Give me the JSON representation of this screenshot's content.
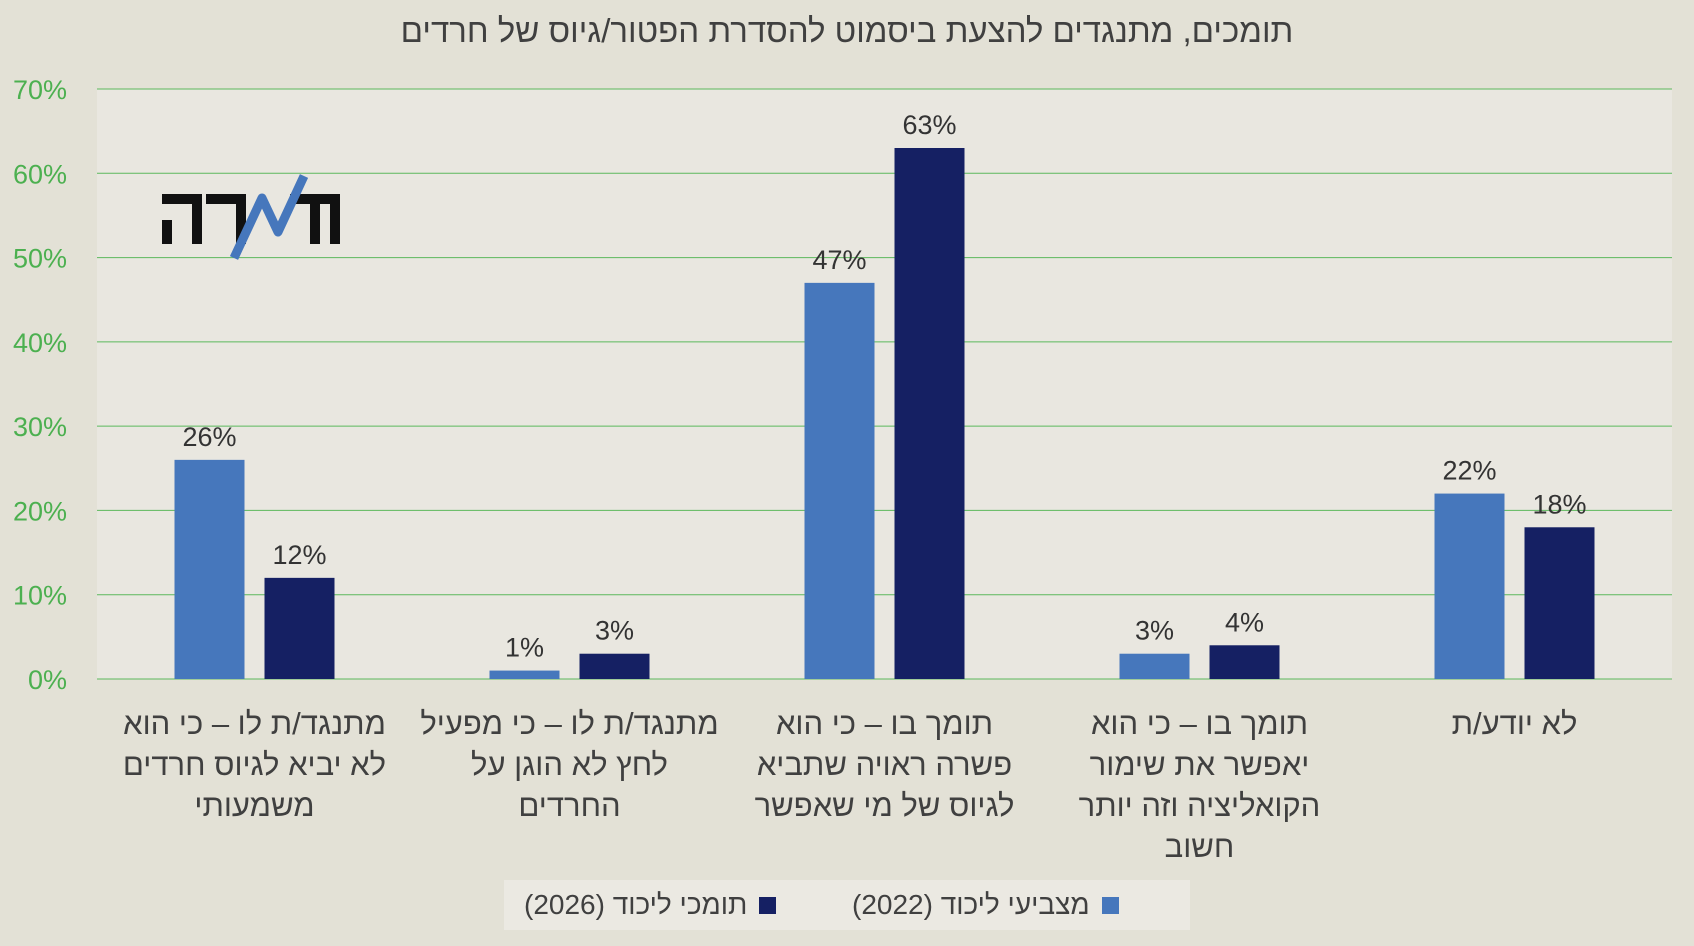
{
  "chart_data": {
    "type": "bar",
    "title": "תומכים, מתנגדים להצעת ביסמוט להסדרת הפטור/גיוס של חרדים",
    "xlabel": "",
    "ylabel": "",
    "ylim": [
      0,
      70
    ],
    "y_ticks": [
      "0%",
      "10%",
      "20%",
      "30%",
      "40%",
      "50%",
      "60%",
      "70%"
    ],
    "grid": true,
    "legend_position": "bottom",
    "categories": [
      [
        "מתנגד/ת לו – כי הוא",
        "לא יביא לגיוס חרדים",
        "משמעותי"
      ],
      [
        "מתנגד/ת לו – כי מפעיל",
        "לחץ לא הוגן על",
        "החרדים"
      ],
      [
        "תומך בו – כי הוא",
        "פשרה ראויה שתביא",
        "לגיוס של מי שאפשר"
      ],
      [
        "תומך בו – כי הוא",
        "יאפשר את שימור",
        "הקואליציה וזה יותר",
        "חשוב"
      ],
      [
        "לא יודע/ת"
      ]
    ],
    "series": [
      {
        "name": "מצביעי ליכוד (2022)",
        "color": "#4677bc",
        "values": [
          26,
          1,
          47,
          3,
          22
        ],
        "labels": [
          "26%",
          "1%",
          "47%",
          "3%",
          "22%"
        ]
      },
      {
        "name": "תומכי ליכוד (2026)",
        "color": "#152063",
        "values": [
          12,
          3,
          63,
          4,
          18
        ],
        "labels": [
          "12%",
          "3%",
          "63%",
          "4%",
          "18%"
        ]
      }
    ]
  },
  "logo": {
    "text": "הנדד",
    "accent_color": "#4677bc"
  },
  "colors": {
    "background": "#e3e1d6",
    "plot_background": "#e9e7e0",
    "grid": "#5cb85c",
    "axis_tick_text": "#4cb050",
    "text": "#404040"
  }
}
